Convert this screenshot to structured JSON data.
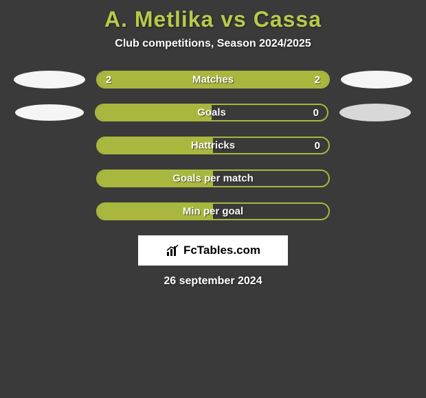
{
  "title": {
    "player_a": "A. Metlika",
    "vs": " vs ",
    "player_b": "Cassa",
    "color_a": "#b9c94a",
    "color_b": "#b9c94a"
  },
  "subtitle": "Club competitions, Season 2024/2025",
  "colors": {
    "background": "#3a3a3a",
    "bar_fill_a": "#aab73f",
    "bar_fill_b": "#aab73f",
    "bar_empty": "transparent",
    "bar_border": "#aab73f",
    "ellipse_light": "#f5f5f5",
    "ellipse_dark": "#d8d8d8",
    "text_white": "#ffffff"
  },
  "ellipse_sizes": {
    "row0": {
      "left_w": 104,
      "left_h": 26,
      "right_w": 104,
      "right_h": 26
    },
    "row1": {
      "left_w": 100,
      "left_h": 24,
      "right_w": 104,
      "right_h": 26
    }
  },
  "rows": [
    {
      "label": "Matches",
      "val_a": "2",
      "val_b": "2",
      "fill_a": true,
      "fill_b": true,
      "ellipse_kind": "large_pair"
    },
    {
      "label": "Goals",
      "val_a": "",
      "val_b": "0",
      "fill_a": true,
      "fill_b": false,
      "ellipse_kind": "small_pair"
    },
    {
      "label": "Hattricks",
      "val_a": "",
      "val_b": "0",
      "fill_a": true,
      "fill_b": false,
      "ellipse_kind": "none"
    },
    {
      "label": "Goals per match",
      "val_a": "",
      "val_b": "",
      "fill_a": true,
      "fill_b": false,
      "ellipse_kind": "none"
    },
    {
      "label": "Min per goal",
      "val_a": "",
      "val_b": "",
      "fill_a": true,
      "fill_b": false,
      "ellipse_kind": "none"
    }
  ],
  "logo": {
    "text": "FcTables.com"
  },
  "date": "26 september 2024"
}
